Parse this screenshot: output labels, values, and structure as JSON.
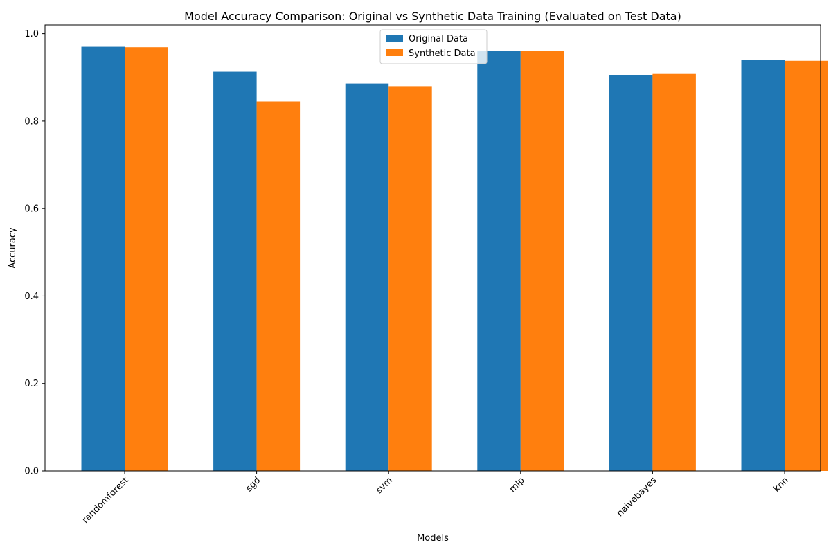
{
  "chart_data": {
    "type": "bar",
    "title": "Model Accuracy Comparison: Original vs Synthetic Data Training (Evaluated on Test Data)",
    "xlabel": "Models",
    "ylabel": "Accuracy",
    "categories": [
      "randomforest",
      "sgd",
      "svm",
      "mlp",
      "naivebayes",
      "knn"
    ],
    "series": [
      {
        "name": "Original Data",
        "color": "#1f77b4",
        "values": [
          0.97,
          0.913,
          0.886,
          0.96,
          0.905,
          0.94
        ]
      },
      {
        "name": "Synthetic Data",
        "color": "#ff7f0e",
        "values": [
          0.969,
          0.845,
          0.88,
          0.96,
          0.908,
          0.938
        ]
      }
    ],
    "ylim": [
      0,
      1.02
    ],
    "yticks": [
      "0.0",
      "0.2",
      "0.4",
      "0.6",
      "0.8",
      "1.0"
    ],
    "ytick_values": [
      0,
      0.2,
      0.4,
      0.6,
      0.8,
      1.0
    ],
    "grid": false,
    "legend_position": "upper center"
  }
}
